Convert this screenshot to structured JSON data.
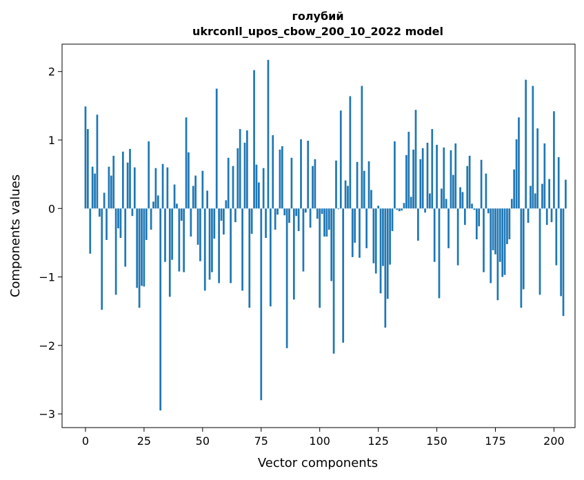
{
  "chart_data": {
    "type": "bar",
    "title": "голубий",
    "subtitle": "ukrconll_upos_cbow_200_10_2022 model",
    "xlabel": "Vector components",
    "ylabel": "Components values",
    "xlim": [
      -10,
      209
    ],
    "ylim": [
      -3.2,
      2.4
    ],
    "xticks": [
      0,
      25,
      50,
      75,
      100,
      125,
      150,
      175,
      200
    ],
    "yticks": [
      -3,
      -2,
      -1,
      0,
      1,
      2
    ],
    "ytick_labels": [
      "−3",
      "−2",
      "−1",
      "0",
      "1",
      "2"
    ],
    "bar_color": "#1f77b4",
    "grid": false,
    "values": [
      1.49,
      1.16,
      -0.66,
      0.61,
      0.51,
      1.37,
      -0.12,
      -1.48,
      0.23,
      -0.46,
      0.61,
      0.48,
      0.77,
      -1.26,
      -0.29,
      -0.43,
      0.83,
      -0.85,
      0.67,
      0.87,
      -0.11,
      0.6,
      -1.16,
      -1.45,
      -1.13,
      -1.14,
      -0.46,
      0.98,
      -0.31,
      0.1,
      0.59,
      0.19,
      -2.95,
      0.65,
      -0.78,
      0.6,
      -1.29,
      -0.75,
      0.35,
      0.07,
      -0.92,
      -0.18,
      -0.93,
      1.33,
      0.82,
      -0.41,
      0.33,
      0.48,
      -0.53,
      -0.77,
      0.55,
      -1.2,
      0.26,
      -1.04,
      -0.93,
      -0.44,
      1.75,
      -1.09,
      -0.18,
      -0.38,
      0.12,
      0.74,
      -1.09,
      0.62,
      -0.2,
      0.88,
      1.16,
      -1.2,
      0.96,
      1.14,
      -1.45,
      -0.37,
      2.02,
      0.64,
      0.38,
      -2.8,
      0.59,
      -0.43,
      2.17,
      -1.43,
      1.07,
      -0.31,
      -0.09,
      0.86,
      0.91,
      -0.1,
      -2.04,
      -0.21,
      0.74,
      -1.33,
      -0.11,
      -0.33,
      1.01,
      -0.92,
      -0.06,
      0.99,
      -0.28,
      0.62,
      0.72,
      -0.15,
      -1.45,
      -0.08,
      -0.41,
      -0.41,
      -0.31,
      -1.06,
      -2.12,
      0.7,
      -0.01,
      1.43,
      -1.96,
      0.41,
      0.33,
      1.64,
      -0.71,
      -0.5,
      0.68,
      -0.72,
      1.79,
      0.55,
      -0.58,
      0.69,
      0.27,
      -0.8,
      -0.95,
      0.04,
      -1.24,
      -0.84,
      -1.74,
      -1.32,
      -0.82,
      -0.33,
      0.98,
      -0.02,
      -0.04,
      -0.03,
      0.08,
      0.78,
      1.12,
      0.17,
      0.86,
      1.44,
      -0.47,
      0.72,
      0.88,
      -0.06,
      0.96,
      0.22,
      1.16,
      -0.78,
      0.93,
      -1.31,
      0.29,
      0.89,
      0.14,
      -0.58,
      0.85,
      0.49,
      0.95,
      -0.83,
      0.31,
      0.24,
      -0.24,
      0.62,
      0.77,
      0.07,
      -0.02,
      -0.45,
      -0.26,
      0.71,
      -0.93,
      0.51,
      -0.07,
      -1.09,
      -0.61,
      -0.67,
      -1.34,
      -0.78,
      -1.0,
      -0.97,
      -0.52,
      -0.45,
      0.14,
      0.57,
      1.01,
      1.33,
      -1.45,
      -1.18,
      1.88,
      -0.21,
      0.33,
      1.79,
      0.22,
      1.17,
      -1.26,
      0.36,
      0.95,
      -0.24,
      0.43,
      -0.2,
      1.42,
      -0.83,
      0.75,
      -1.28,
      -1.57,
      0.42
    ]
  }
}
